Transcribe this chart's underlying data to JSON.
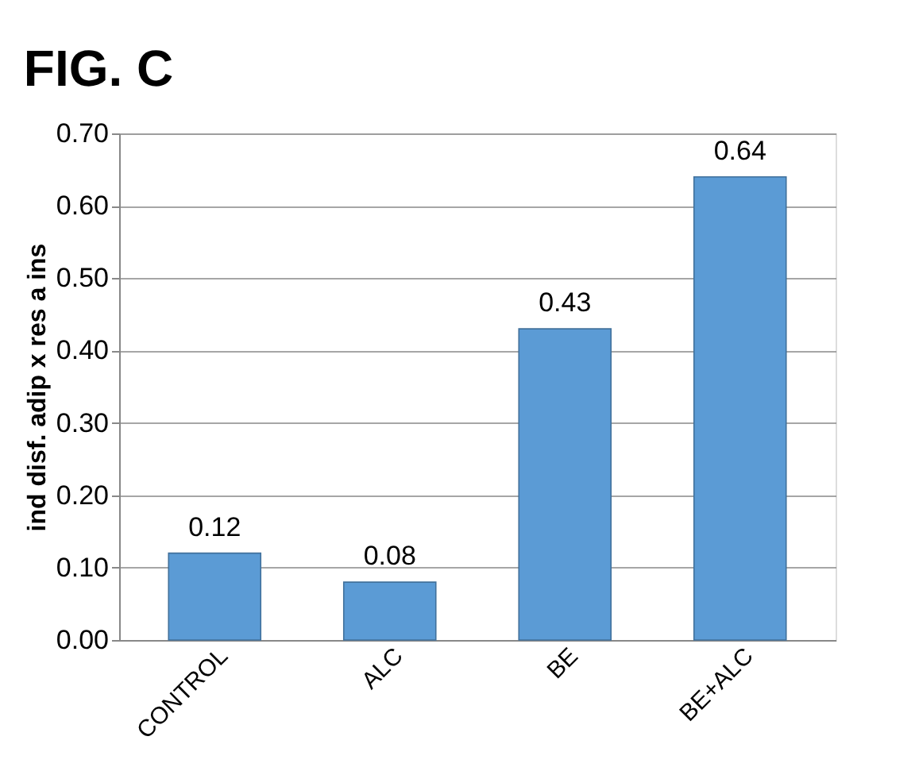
{
  "chart_data": {
    "type": "bar",
    "title": "FIG. C",
    "ylabel": "ind disf. adip x res a ins",
    "categories": [
      "CONTROL",
      "ALC",
      "BE",
      "BE+ALC"
    ],
    "values": [
      0.12,
      0.08,
      0.43,
      0.64
    ],
    "color": "#5b9bd5",
    "ylim": [
      0,
      0.7
    ],
    "yticks": [
      {
        "value": 0,
        "label": "0.00"
      },
      {
        "value": 0.1,
        "label": "0.10"
      },
      {
        "value": 0.2,
        "label": "0.20"
      },
      {
        "value": 0.3,
        "label": "0.30"
      },
      {
        "value": 0.4,
        "label": "0.40"
      },
      {
        "value": 0.5,
        "label": "0.50"
      },
      {
        "value": 0.6,
        "label": "0.60"
      },
      {
        "value": 0.7,
        "label": "0.70"
      }
    ],
    "grid": "y",
    "data_labels": true
  }
}
